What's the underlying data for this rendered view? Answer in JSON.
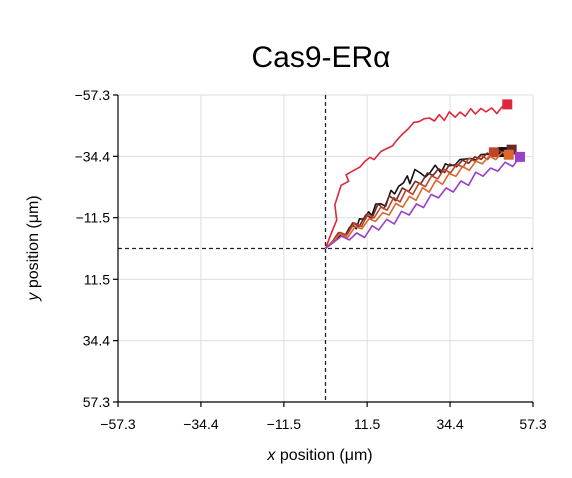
{
  "chart_data": {
    "type": "line",
    "title": "Cas9-ERα",
    "xlabel": {
      "italic": "x",
      "rest": " position (μm)"
    },
    "ylabel": {
      "italic": "y",
      "rest": " position (μm)"
    },
    "xlim": [
      -57.3,
      57.3
    ],
    "ylim": [
      -57.3,
      57.3
    ],
    "y_inverted": true,
    "xticks": [
      -57.3,
      -34.4,
      -11.5,
      11.5,
      34.4,
      57.3
    ],
    "yticks": [
      -57.3,
      -34.4,
      -11.5,
      11.5,
      34.4,
      57.3
    ],
    "xtick_labels": [
      "−57.3",
      "−34.4",
      "−11.5",
      "11.5",
      "34.4",
      "57.3"
    ],
    "ytick_labels": [
      "−57.3",
      "−34.4",
      "−11.5",
      "11.5",
      "34.4",
      "57.3"
    ],
    "grid": true,
    "reference_lines": {
      "x": 0,
      "y": 0,
      "style": "dashed"
    },
    "end_marker": "square",
    "series": [
      {
        "color": "#e0263c",
        "x": [
          0,
          1.5,
          3.1,
          2.6,
          4.3,
          6.4,
          5.7,
          7.2,
          9.5,
          10.9,
          12.3,
          13.4,
          15.3,
          16.6,
          18.5,
          19.8,
          21.4,
          22.8,
          24.4,
          25.7,
          27.2,
          28.7,
          30.1,
          31.4,
          32.8,
          34.2,
          35.8,
          37.2,
          38.6,
          40.1,
          41.4,
          42.9,
          44.3,
          45.9,
          47.3,
          48.8,
          50.2
        ],
        "y": [
          0,
          -5.3,
          -10.6,
          -16.3,
          -23.6,
          -25.1,
          -27.5,
          -28.7,
          -30.4,
          -32.6,
          -34.0,
          -33.2,
          -36.2,
          -37.1,
          -38.3,
          -40.6,
          -42.9,
          -44.6,
          -47.1,
          -47.3,
          -48.4,
          -48.7,
          -47.6,
          -50.0,
          -47.8,
          -51.0,
          -49.0,
          -50.9,
          -49.4,
          -52.2,
          -50.2,
          -52.3,
          -51.0,
          -52.5,
          -50.4,
          -52.9,
          -53.8
        ]
      },
      {
        "color": "#111111",
        "x": [
          0,
          2.1,
          4.2,
          5.3,
          6.6,
          7.6,
          8.5,
          9.4,
          10.6,
          11.9,
          12.8,
          13.9,
          15.3,
          16.6,
          18.1,
          19.1,
          20.2,
          21.5,
          22.6,
          23.3,
          24.7,
          26.2,
          27.6,
          28.9,
          30.3,
          31.9,
          33.1,
          34.3,
          35.8,
          37.1,
          38.7,
          40.2,
          41.6,
          42.9,
          44.6,
          46.1,
          47.3,
          48.9
        ],
        "y": [
          0,
          -2.7,
          -4.9,
          -4.5,
          -7.8,
          -8.7,
          -7.4,
          -11.1,
          -10.9,
          -13.7,
          -12.3,
          -16.6,
          -16.7,
          -15.8,
          -21.7,
          -20.4,
          -23.2,
          -24.5,
          -27.1,
          -24.2,
          -29.5,
          -28.2,
          -26.7,
          -28.4,
          -31.1,
          -28.2,
          -31.6,
          -30.9,
          -31.2,
          -33.2,
          -33.4,
          -33.6,
          -33.0,
          -35.1,
          -35.2,
          -35.0,
          -36.3,
          -36.0
        ]
      },
      {
        "color": "#6b2a2a",
        "x": [
          0,
          2.0,
          3.6,
          5.4,
          7.5,
          9.3,
          11.1,
          12.8,
          14.5,
          16.1,
          17.6,
          19.4,
          21.2,
          23.0,
          24.8,
          26.3,
          28.1,
          29.7,
          31.2,
          32.9,
          34.3,
          36.2,
          37.8,
          39.5,
          41.2,
          43.0,
          44.7,
          46.1,
          47.8,
          49.7,
          51.4
        ],
        "y": [
          0,
          -2.8,
          -5.9,
          -4.7,
          -9.6,
          -8.3,
          -12.5,
          -11.3,
          -16.6,
          -14.8,
          -19.7,
          -17.8,
          -22.6,
          -21.3,
          -25.1,
          -24.1,
          -28.2,
          -27.3,
          -29.8,
          -28.4,
          -31.5,
          -30.5,
          -33.0,
          -31.8,
          -34.2,
          -33.3,
          -35.6,
          -34.4,
          -36.7,
          -35.0,
          -36.9
        ]
      },
      {
        "color": "#c0442a",
        "x": [
          0,
          2.2,
          4.0,
          5.9,
          8.0,
          9.9,
          11.8,
          13.4,
          15.3,
          17.0,
          18.8,
          20.6,
          22.2,
          24.1,
          25.8,
          27.6,
          29.3,
          31.0,
          32.7,
          34.5,
          36.2,
          38.0,
          39.6,
          41.3,
          43.1,
          44.7,
          46.5
        ],
        "y": [
          0,
          -3.0,
          -6.0,
          -5.0,
          -9.6,
          -8.2,
          -12.9,
          -11.4,
          -15.5,
          -14.3,
          -19.0,
          -17.4,
          -21.8,
          -20.2,
          -24.3,
          -23.1,
          -27.1,
          -26.0,
          -29.6,
          -28.2,
          -31.4,
          -30.4,
          -33.7,
          -32.5,
          -34.8,
          -33.2,
          -35.9
        ]
      },
      {
        "color": "#d8692b",
        "x": [
          0,
          2.1,
          4.0,
          6.1,
          8.2,
          10.0,
          12.0,
          13.8,
          15.8,
          17.6,
          19.4,
          21.3,
          23.2,
          25.0,
          26.8,
          28.6,
          30.5,
          32.3,
          34.1,
          36.0,
          37.8,
          39.7,
          41.5,
          43.3,
          45.2,
          47.0,
          48.8,
          50.6
        ],
        "y": [
          0,
          -2.6,
          -5.4,
          -4.1,
          -8.2,
          -7.3,
          -11.1,
          -10.1,
          -13.4,
          -12.5,
          -16.8,
          -15.4,
          -19.5,
          -18.0,
          -22.7,
          -21.0,
          -25.5,
          -24.0,
          -28.0,
          -26.9,
          -30.6,
          -29.2,
          -32.6,
          -31.6,
          -34.5,
          -33.2,
          -36.0,
          -35.0
        ]
      },
      {
        "color": "#9a3fc9",
        "x": [
          0,
          2.3,
          4.4,
          6.6,
          8.6,
          10.8,
          12.9,
          14.7,
          16.9,
          19.0,
          21.0,
          23.1,
          25.1,
          27.1,
          29.2,
          31.2,
          33.3,
          35.3,
          37.4,
          39.5,
          41.5,
          43.5,
          45.6,
          47.6,
          49.6,
          51.7,
          53.7
        ],
        "y": [
          0,
          -2.4,
          -4.6,
          -3.2,
          -5.8,
          -4.1,
          -8.5,
          -6.9,
          -10.9,
          -9.2,
          -13.9,
          -12.5,
          -16.6,
          -15.3,
          -20.2,
          -18.9,
          -22.6,
          -21.1,
          -25.2,
          -23.6,
          -28.5,
          -27.0,
          -30.0,
          -28.9,
          -32.2,
          -30.6,
          -34.2
        ]
      }
    ]
  }
}
